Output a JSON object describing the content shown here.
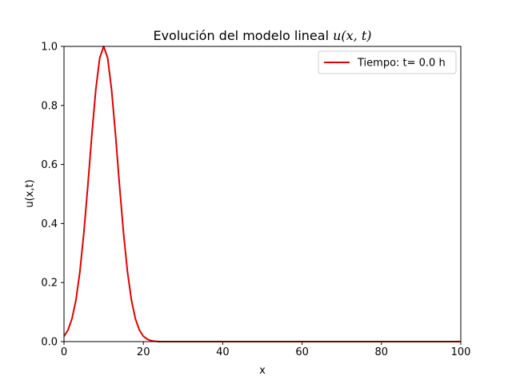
{
  "chart_data": {
    "type": "line",
    "title": "Evolución del modelo lineal u(x,t)",
    "title_parts": {
      "text": "Evolución del modelo lineal ",
      "math": "u(x, t)"
    },
    "xlabel": "x",
    "ylabel": "u(x,t)",
    "xlim": [
      0,
      100
    ],
    "ylim": [
      0,
      1
    ],
    "xticks": [
      0,
      20,
      40,
      60,
      80,
      100
    ],
    "yticks": [
      0.0,
      0.2,
      0.4,
      0.6,
      0.8,
      1.0
    ],
    "xtick_labels": [
      "0",
      "20",
      "40",
      "60",
      "80",
      "100"
    ],
    "ytick_labels": [
      "0.0",
      "0.2",
      "0.4",
      "0.6",
      "0.8",
      "1.0"
    ],
    "grid": false,
    "legend_position": "top-right",
    "series": [
      {
        "name": "Tiempo: t= 0.0 h",
        "color": "#e00000",
        "x": [
          0,
          1,
          2,
          3,
          4,
          5,
          6,
          7,
          8,
          9,
          10,
          11,
          12,
          13,
          14,
          15,
          16,
          17,
          18,
          19,
          20,
          21,
          22,
          23,
          24,
          25,
          30,
          40,
          50,
          60,
          70,
          80,
          90,
          100
        ],
        "y": [
          0.018,
          0.039,
          0.077,
          0.14,
          0.236,
          0.368,
          0.527,
          0.698,
          0.852,
          0.961,
          1.0,
          0.961,
          0.852,
          0.698,
          0.527,
          0.368,
          0.236,
          0.14,
          0.077,
          0.039,
          0.018,
          0.008,
          0.003,
          0.001,
          0.0,
          0.0,
          0.0,
          0.0,
          0.0,
          0.0,
          0.0,
          0.0,
          0.0,
          0.0
        ]
      }
    ]
  }
}
